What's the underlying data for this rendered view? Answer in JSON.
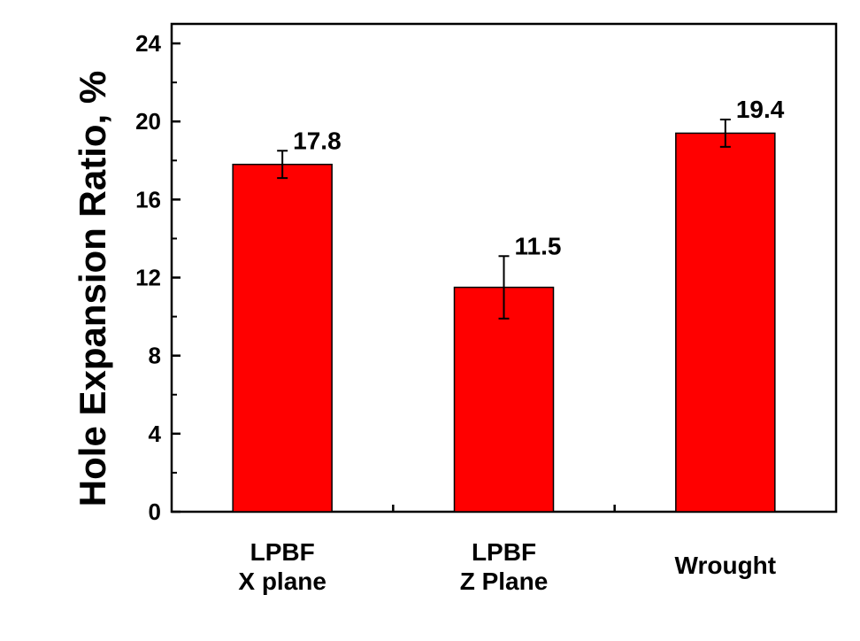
{
  "chart_data": {
    "type": "bar",
    "title": "",
    "xlabel": "",
    "ylabel": "Hole Expansion Ratio, %",
    "ylim": [
      0,
      25
    ],
    "yticks": [
      0,
      4,
      8,
      12,
      16,
      20,
      24
    ],
    "categories": [
      [
        "LPBF",
        "X plane"
      ],
      [
        "LPBF",
        "Z Plane"
      ],
      [
        "Wrought"
      ]
    ],
    "values": [
      17.8,
      11.5,
      19.4
    ],
    "data_labels": [
      "17.8",
      "11.5",
      "19.4"
    ],
    "error_bars": [
      {
        "low": 17.1,
        "high": 18.5
      },
      {
        "low": 9.9,
        "high": 13.1
      },
      {
        "low": 18.7,
        "high": 20.1
      }
    ],
    "bar_color": "#ff0000",
    "bar_edge_color": "#000000",
    "grid": false,
    "legend": "none"
  }
}
